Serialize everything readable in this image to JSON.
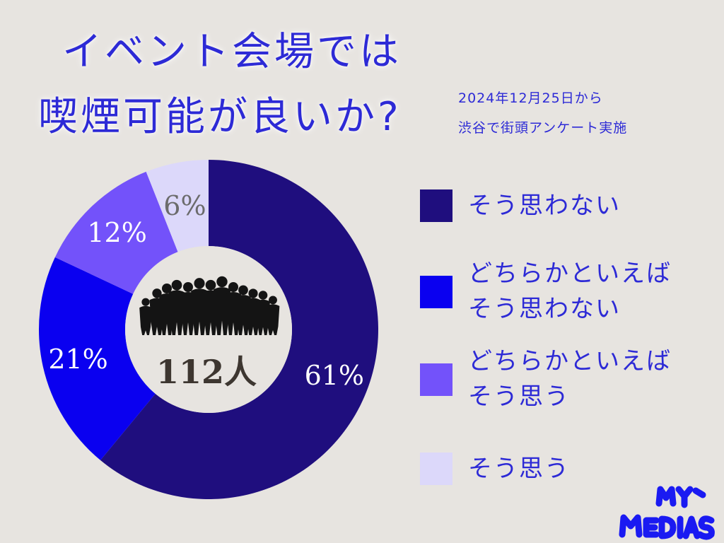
{
  "title": {
    "line1": "イベント会場では",
    "line2": "喫煙可能が良いか?"
  },
  "note": {
    "line1": "2024年12月25日から",
    "line2": "渋谷で街頭アンケート実施"
  },
  "center_total": "112人",
  "legend": [
    {
      "line1": "そう思わない",
      "line2": "",
      "color": "#1f0e7e"
    },
    {
      "line1": "どちらかといえば",
      "line2": "そう思わない",
      "color": "#0a00f0"
    },
    {
      "line1": "どちらかといえば",
      "line2": "そう思う",
      "color": "#7352fa"
    },
    {
      "line1": "そう思う",
      "line2": "",
      "color": "#dcd8fa"
    }
  ],
  "chart_data": {
    "type": "pie",
    "donut": true,
    "categories": [
      "そう思わない",
      "どちらかといえばそう思わない",
      "どちらかといえばそう思う",
      "そう思う"
    ],
    "values": [
      61,
      21,
      12,
      6
    ],
    "labels": [
      "61%",
      "21%",
      "12%",
      "6%"
    ],
    "colors": [
      "#1f0e7e",
      "#0a00f0",
      "#7352fa",
      "#dcd8fa"
    ],
    "label_colors": [
      "#ffffff",
      "#ffffff",
      "#ffffff",
      "#6b6b6b"
    ],
    "center_label": "112人"
  },
  "logo_text": "MY MEDIAS"
}
